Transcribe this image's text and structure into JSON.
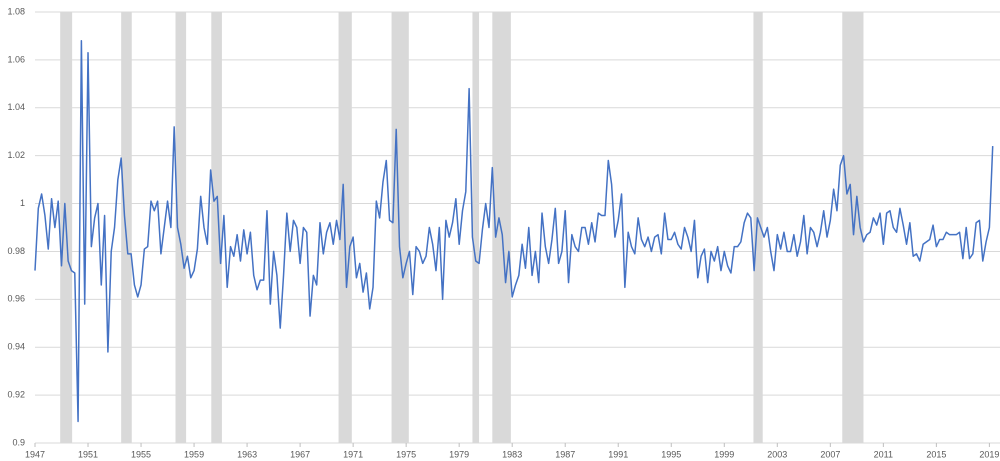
{
  "chart_data": {
    "type": "line",
    "color": "#4472c4",
    "shade_color": "#d9d9d9",
    "grid": true,
    "xlim": [
      1947,
      2019.8
    ],
    "xticks": [
      1947,
      1951,
      1955,
      1959,
      1963,
      1967,
      1971,
      1975,
      1979,
      1983,
      1987,
      1991,
      1995,
      1999,
      2003,
      2007,
      2011,
      2015,
      2019
    ],
    "ylim": [
      0.9,
      1.08
    ],
    "yticks": [
      0.9,
      0.92,
      0.94,
      0.96,
      0.98,
      1,
      1.02,
      1.04,
      1.06,
      1.08
    ],
    "shaded_periods": [
      [
        1948.9,
        1949.8
      ],
      [
        1953.5,
        1954.3
      ],
      [
        1957.6,
        1958.4
      ],
      [
        1960.3,
        1961.1
      ],
      [
        1969.9,
        1970.9
      ],
      [
        1973.9,
        1975.2
      ],
      [
        1980.0,
        1980.5
      ],
      [
        1981.5,
        1982.9
      ],
      [
        2001.2,
        2001.9
      ],
      [
        2007.9,
        2009.5
      ]
    ],
    "x": [
      1947,
      1947.25,
      1947.5,
      1947.75,
      1948,
      1948.25,
      1948.5,
      1948.75,
      1949,
      1949.25,
      1949.5,
      1949.75,
      1950,
      1950.25,
      1950.5,
      1950.75,
      1951,
      1951.25,
      1951.5,
      1951.75,
      1952,
      1952.25,
      1952.5,
      1952.75,
      1953,
      1953.25,
      1953.5,
      1953.75,
      1954,
      1954.25,
      1954.5,
      1954.75,
      1955,
      1955.25,
      1955.5,
      1955.75,
      1956,
      1956.25,
      1956.5,
      1956.75,
      1957,
      1957.25,
      1957.5,
      1957.75,
      1958,
      1958.25,
      1958.5,
      1958.75,
      1959,
      1959.25,
      1959.5,
      1959.75,
      1960,
      1960.25,
      1960.5,
      1960.75,
      1961,
      1961.25,
      1961.5,
      1961.75,
      1962,
      1962.25,
      1962.5,
      1962.75,
      1963,
      1963.25,
      1963.5,
      1963.75,
      1964,
      1964.25,
      1964.5,
      1964.75,
      1965,
      1965.25,
      1965.5,
      1965.75,
      1966,
      1966.25,
      1966.5,
      1966.75,
      1967,
      1967.25,
      1967.5,
      1967.75,
      1968,
      1968.25,
      1968.5,
      1968.75,
      1969,
      1969.25,
      1969.5,
      1969.75,
      1970,
      1970.25,
      1970.5,
      1970.75,
      1971,
      1971.25,
      1971.5,
      1971.75,
      1972,
      1972.25,
      1972.5,
      1972.75,
      1973,
      1973.25,
      1973.5,
      1973.75,
      1974,
      1974.25,
      1974.5,
      1974.75,
      1975,
      1975.25,
      1975.5,
      1975.75,
      1976,
      1976.25,
      1976.5,
      1976.75,
      1977,
      1977.25,
      1977.5,
      1977.75,
      1978,
      1978.25,
      1978.5,
      1978.75,
      1979,
      1979.25,
      1979.5,
      1979.75,
      1980,
      1980.25,
      1980.5,
      1980.75,
      1981,
      1981.25,
      1981.5,
      1981.75,
      1982,
      1982.25,
      1982.5,
      1982.75,
      1983,
      1983.25,
      1983.5,
      1983.75,
      1984,
      1984.25,
      1984.5,
      1984.75,
      1985,
      1985.25,
      1985.5,
      1985.75,
      1986,
      1986.25,
      1986.5,
      1986.75,
      1987,
      1987.25,
      1987.5,
      1987.75,
      1988,
      1988.25,
      1988.5,
      1988.75,
      1989,
      1989.25,
      1989.5,
      1989.75,
      1990,
      1990.25,
      1990.5,
      1990.75,
      1991,
      1991.25,
      1991.5,
      1991.75,
      1992,
      1992.25,
      1992.5,
      1992.75,
      1993,
      1993.25,
      1993.5,
      1993.75,
      1994,
      1994.25,
      1994.5,
      1994.75,
      1995,
      1995.25,
      1995.5,
      1995.75,
      1996,
      1996.25,
      1996.5,
      1996.75,
      1997,
      1997.25,
      1997.5,
      1997.75,
      1998,
      1998.25,
      1998.5,
      1998.75,
      1999,
      1999.25,
      1999.5,
      1999.75,
      2000,
      2000.25,
      2000.5,
      2000.75,
      2001,
      2001.25,
      2001.5,
      2001.75,
      2002,
      2002.25,
      2002.5,
      2002.75,
      2003,
      2003.25,
      2003.5,
      2003.75,
      2004,
      2004.25,
      2004.5,
      2004.75,
      2005,
      2005.25,
      2005.5,
      2005.75,
      2006,
      2006.25,
      2006.5,
      2006.75,
      2007,
      2007.25,
      2007.5,
      2007.75,
      2008,
      2008.25,
      2008.5,
      2008.75,
      2009,
      2009.25,
      2009.5,
      2009.75,
      2010,
      2010.25,
      2010.5,
      2010.75,
      2011,
      2011.25,
      2011.5,
      2011.75,
      2012,
      2012.25,
      2012.5,
      2012.75,
      2013,
      2013.25,
      2013.5,
      2013.75,
      2014,
      2014.25,
      2014.5,
      2014.75,
      2015,
      2015.25,
      2015.5,
      2015.75,
      2016,
      2016.25,
      2016.5,
      2016.75,
      2017,
      2017.25,
      2017.5,
      2017.75,
      2018,
      2018.25,
      2018.5,
      2018.75,
      2019,
      2019.25
    ],
    "values": [
      0.972,
      0.998,
      1.004,
      0.995,
      0.981,
      1.002,
      0.99,
      1.001,
      0.974,
      1.0,
      0.976,
      0.972,
      0.971,
      0.909,
      1.068,
      0.958,
      1.063,
      0.982,
      0.994,
      1.0,
      0.966,
      0.995,
      0.938,
      0.98,
      0.99,
      1.01,
      1.019,
      0.995,
      0.979,
      0.979,
      0.966,
      0.961,
      0.966,
      0.981,
      0.982,
      1.001,
      0.997,
      1.001,
      0.979,
      0.99,
      1.001,
      0.99,
      1.032,
      0.99,
      0.983,
      0.973,
      0.978,
      0.969,
      0.972,
      0.981,
      1.003,
      0.99,
      0.983,
      1.014,
      1.001,
      1.003,
      0.975,
      0.995,
      0.965,
      0.982,
      0.978,
      0.987,
      0.976,
      0.989,
      0.979,
      0.988,
      0.97,
      0.964,
      0.968,
      0.968,
      0.997,
      0.958,
      0.98,
      0.97,
      0.948,
      0.97,
      0.996,
      0.98,
      0.993,
      0.99,
      0.975,
      0.99,
      0.988,
      0.953,
      0.97,
      0.966,
      0.992,
      0.979,
      0.988,
      0.992,
      0.983,
      0.993,
      0.985,
      1.008,
      0.965,
      0.982,
      0.986,
      0.969,
      0.975,
      0.963,
      0.971,
      0.956,
      0.965,
      1.001,
      0.994,
      1.009,
      1.018,
      0.993,
      0.992,
      1.031,
      0.982,
      0.969,
      0.975,
      0.98,
      0.962,
      0.982,
      0.98,
      0.975,
      0.978,
      0.99,
      0.983,
      0.972,
      0.99,
      0.96,
      0.993,
      0.986,
      0.992,
      1.002,
      0.983,
      0.997,
      1.005,
      1.048,
      0.986,
      0.976,
      0.975,
      0.989,
      1.0,
      0.99,
      1.015,
      0.986,
      0.994,
      0.987,
      0.967,
      0.98,
      0.961,
      0.966,
      0.97,
      0.983,
      0.973,
      0.99,
      0.97,
      0.98,
      0.967,
      0.996,
      0.982,
      0.975,
      0.985,
      0.998,
      0.975,
      0.98,
      0.997,
      0.967,
      0.987,
      0.982,
      0.98,
      0.99,
      0.99,
      0.983,
      0.992,
      0.984,
      0.996,
      0.995,
      0.995,
      1.018,
      1.008,
      0.986,
      0.993,
      1.004,
      0.965,
      0.988,
      0.982,
      0.979,
      0.994,
      0.985,
      0.982,
      0.986,
      0.98,
      0.986,
      0.987,
      0.979,
      0.996,
      0.985,
      0.985,
      0.988,
      0.983,
      0.981,
      0.99,
      0.986,
      0.98,
      0.993,
      0.969,
      0.978,
      0.981,
      0.967,
      0.98,
      0.976,
      0.982,
      0.972,
      0.98,
      0.974,
      0.971,
      0.982,
      0.982,
      0.984,
      0.992,
      0.996,
      0.994,
      0.972,
      0.994,
      0.99,
      0.986,
      0.99,
      0.98,
      0.972,
      0.987,
      0.981,
      0.988,
      0.98,
      0.98,
      0.987,
      0.978,
      0.984,
      0.995,
      0.979,
      0.99,
      0.988,
      0.982,
      0.988,
      0.997,
      0.986,
      0.993,
      1.006,
      0.997,
      1.016,
      1.02,
      1.004,
      1.008,
      0.987,
      1.003,
      0.99,
      0.984,
      0.987,
      0.988,
      0.994,
      0.991,
      0.996,
      0.983,
      0.996,
      0.997,
      0.99,
      0.988,
      0.998,
      0.991,
      0.983,
      0.992,
      0.978,
      0.979,
      0.976,
      0.983,
      0.984,
      0.985,
      0.991,
      0.982,
      0.985,
      0.985,
      0.988,
      0.987,
      0.987,
      0.987,
      0.988,
      0.977,
      0.99,
      0.977,
      0.979,
      0.992,
      0.993,
      0.976,
      0.984,
      0.99,
      1.024
    ]
  }
}
